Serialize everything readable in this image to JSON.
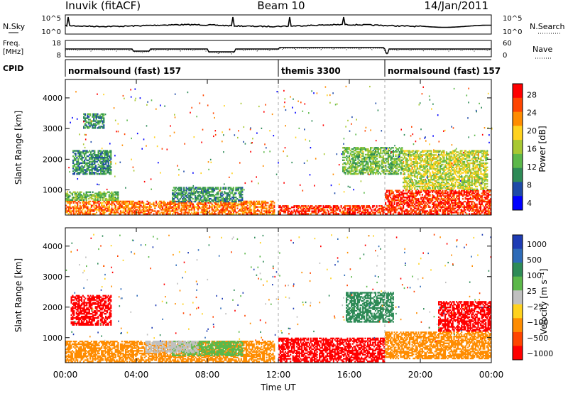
{
  "header": {
    "station": "Inuvik  (fitACF)",
    "beam": "Beam 10",
    "date": "14/Jan/2011"
  },
  "noise_panel": {
    "left_label": "N.Sky",
    "right_label": "N.Search",
    "left_ticks": [
      "10^5",
      "10^0"
    ],
    "right_ticks": [
      "10^5",
      "10^0"
    ]
  },
  "freq_panel": {
    "left_label_1": "Freq.",
    "left_label_2": "[MHz]",
    "right_label": "Nave",
    "left_ticks": [
      "18",
      "8"
    ],
    "right_ticks": [
      "60",
      "0"
    ]
  },
  "cpid": {
    "label": "CPID",
    "segments": [
      {
        "name": "normalsound (fast) 157",
        "start_hour": 0,
        "end_hour": 12
      },
      {
        "name": "themis 3300",
        "start_hour": 12,
        "end_hour": 18
      },
      {
        "name": "normalsound (fast) 157",
        "start_hour": 18,
        "end_hour": 24
      }
    ]
  },
  "colors": {
    "power_scale": [
      "#0000ff",
      "#1e4aa8",
      "#2e8b57",
      "#5cb84a",
      "#a8c832",
      "#ffd21e",
      "#ff8c00",
      "#ff4500",
      "#ff0000"
    ],
    "velocity_scale": [
      "#1e3cb4",
      "#2e6bb8",
      "#2e8b57",
      "#5cb84a",
      "#c0c0c0",
      "#ffd21e",
      "#ff8c00",
      "#ff4500",
      "#ff0000"
    ]
  },
  "chart_data": [
    {
      "type": "heatmap",
      "title": "",
      "xlabel": "",
      "ylabel": "Slant Range [km]",
      "xlim": [
        0,
        24
      ],
      "ylim": [
        180,
        4600
      ],
      "x_ticks": [
        "00:00",
        "04:00",
        "08:00",
        "12:00",
        "16:00",
        "20:00",
        "00:00"
      ],
      "y_ticks": [
        1000,
        2000,
        3000,
        4000
      ],
      "colorbar": {
        "label": "Power [dB]",
        "ticks": [
          "28",
          "24",
          "20",
          "16",
          "12",
          "8",
          "4"
        ],
        "range": [
          0,
          30
        ]
      },
      "regions": [
        {
          "t0": 0.0,
          "t1": 11.8,
          "r0": 200,
          "r1": 650,
          "value": 24
        },
        {
          "t0": 0.0,
          "t1": 3.0,
          "r0": 650,
          "r1": 950,
          "value": 12
        },
        {
          "t0": 0.4,
          "t1": 2.6,
          "r0": 1500,
          "r1": 2300,
          "value": 8
        },
        {
          "t0": 1.0,
          "t1": 2.2,
          "r0": 3000,
          "r1": 3500,
          "value": 8
        },
        {
          "t0": 6.0,
          "t1": 10.0,
          "r0": 600,
          "r1": 1100,
          "value": 8
        },
        {
          "t0": 12.0,
          "t1": 18.0,
          "r0": 200,
          "r1": 500,
          "value": 28
        },
        {
          "t0": 15.6,
          "t1": 19.0,
          "r0": 1500,
          "r1": 2400,
          "value": 12
        },
        {
          "t0": 18.0,
          "t1": 24.0,
          "r0": 200,
          "r1": 1000,
          "value": 28
        },
        {
          "t0": 19.0,
          "t1": 23.8,
          "r0": 1000,
          "r1": 2300,
          "value": 16
        }
      ]
    },
    {
      "type": "heatmap",
      "title": "",
      "xlabel": "Time UT",
      "ylabel": "Slant Range [km]",
      "xlim": [
        0,
        24
      ],
      "ylim": [
        180,
        4600
      ],
      "x_ticks": [
        "00:00",
        "04:00",
        "08:00",
        "12:00",
        "16:00",
        "20:00",
        "00:00"
      ],
      "y_ticks": [
        1000,
        2000,
        3000,
        4000
      ],
      "colorbar": {
        "label": "Velocity  [m s⁻¹]",
        "ticks": [
          "1000",
          "500",
          "100",
          "25",
          "−25",
          "−100",
          "−500",
          "−1000"
        ],
        "range": [
          -1000,
          1000
        ]
      },
      "regions": [
        {
          "t0": 0.0,
          "t1": 11.8,
          "r0": 200,
          "r1": 900,
          "value": -100
        },
        {
          "t0": 0.3,
          "t1": 2.6,
          "r0": 1400,
          "r1": 2400,
          "value": -300
        },
        {
          "t0": 6.0,
          "t1": 10.0,
          "r0": 400,
          "r1": 900,
          "value": 50
        },
        {
          "t0": 4.5,
          "t1": 7.5,
          "r0": 500,
          "r1": 900,
          "value": 0
        },
        {
          "t0": 12.0,
          "t1": 18.0,
          "r0": 200,
          "r1": 1000,
          "value": -200
        },
        {
          "t0": 15.8,
          "t1": 18.5,
          "r0": 1500,
          "r1": 2500,
          "value": 100
        },
        {
          "t0": 18.0,
          "t1": 24.0,
          "r0": 300,
          "r1": 1200,
          "value": -100
        },
        {
          "t0": 21.0,
          "t1": 24.0,
          "r0": 1200,
          "r1": 2200,
          "value": -400
        }
      ]
    }
  ]
}
